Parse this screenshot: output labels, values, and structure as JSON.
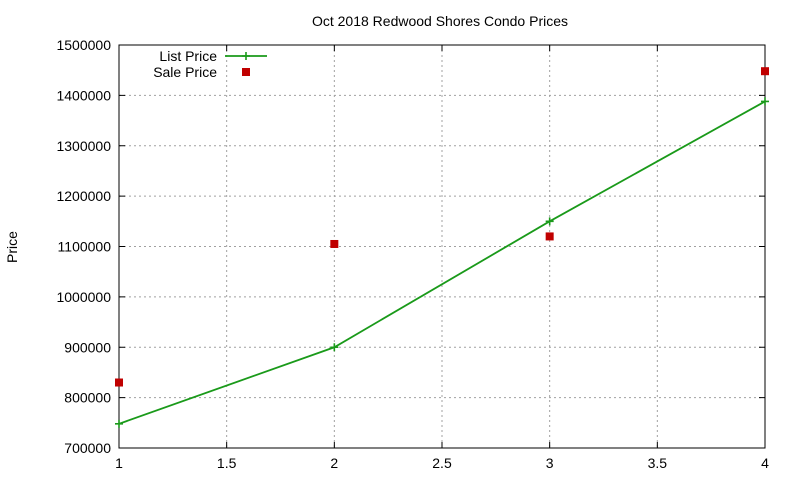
{
  "chart_data": {
    "type": "line",
    "title": "Oct 2018 Redwood Shores Condo Prices",
    "xlabel": "",
    "ylabel": "Price",
    "xlim": [
      1,
      4
    ],
    "ylim": [
      700000,
      1500000
    ],
    "x_ticks": [
      "1",
      "1.5",
      "2",
      "2.5",
      "3",
      "3.5",
      "4"
    ],
    "y_ticks": [
      "700000",
      "800000",
      "900000",
      "1000000",
      "1100000",
      "1200000",
      "1300000",
      "1400000",
      "1500000"
    ],
    "grid": true,
    "legend_position": "top-left",
    "series": [
      {
        "name": "List Price",
        "style": "line-with-plus-markers",
        "color": "#1a9a1a",
        "x": [
          1,
          2,
          3,
          4
        ],
        "values": [
          748000,
          900000,
          1150000,
          1388000
        ]
      },
      {
        "name": "Sale Price",
        "style": "square-markers",
        "color": "#c00000",
        "x": [
          1,
          2,
          3,
          4
        ],
        "values": [
          830000,
          1105000,
          1120000,
          1448000
        ]
      }
    ]
  }
}
